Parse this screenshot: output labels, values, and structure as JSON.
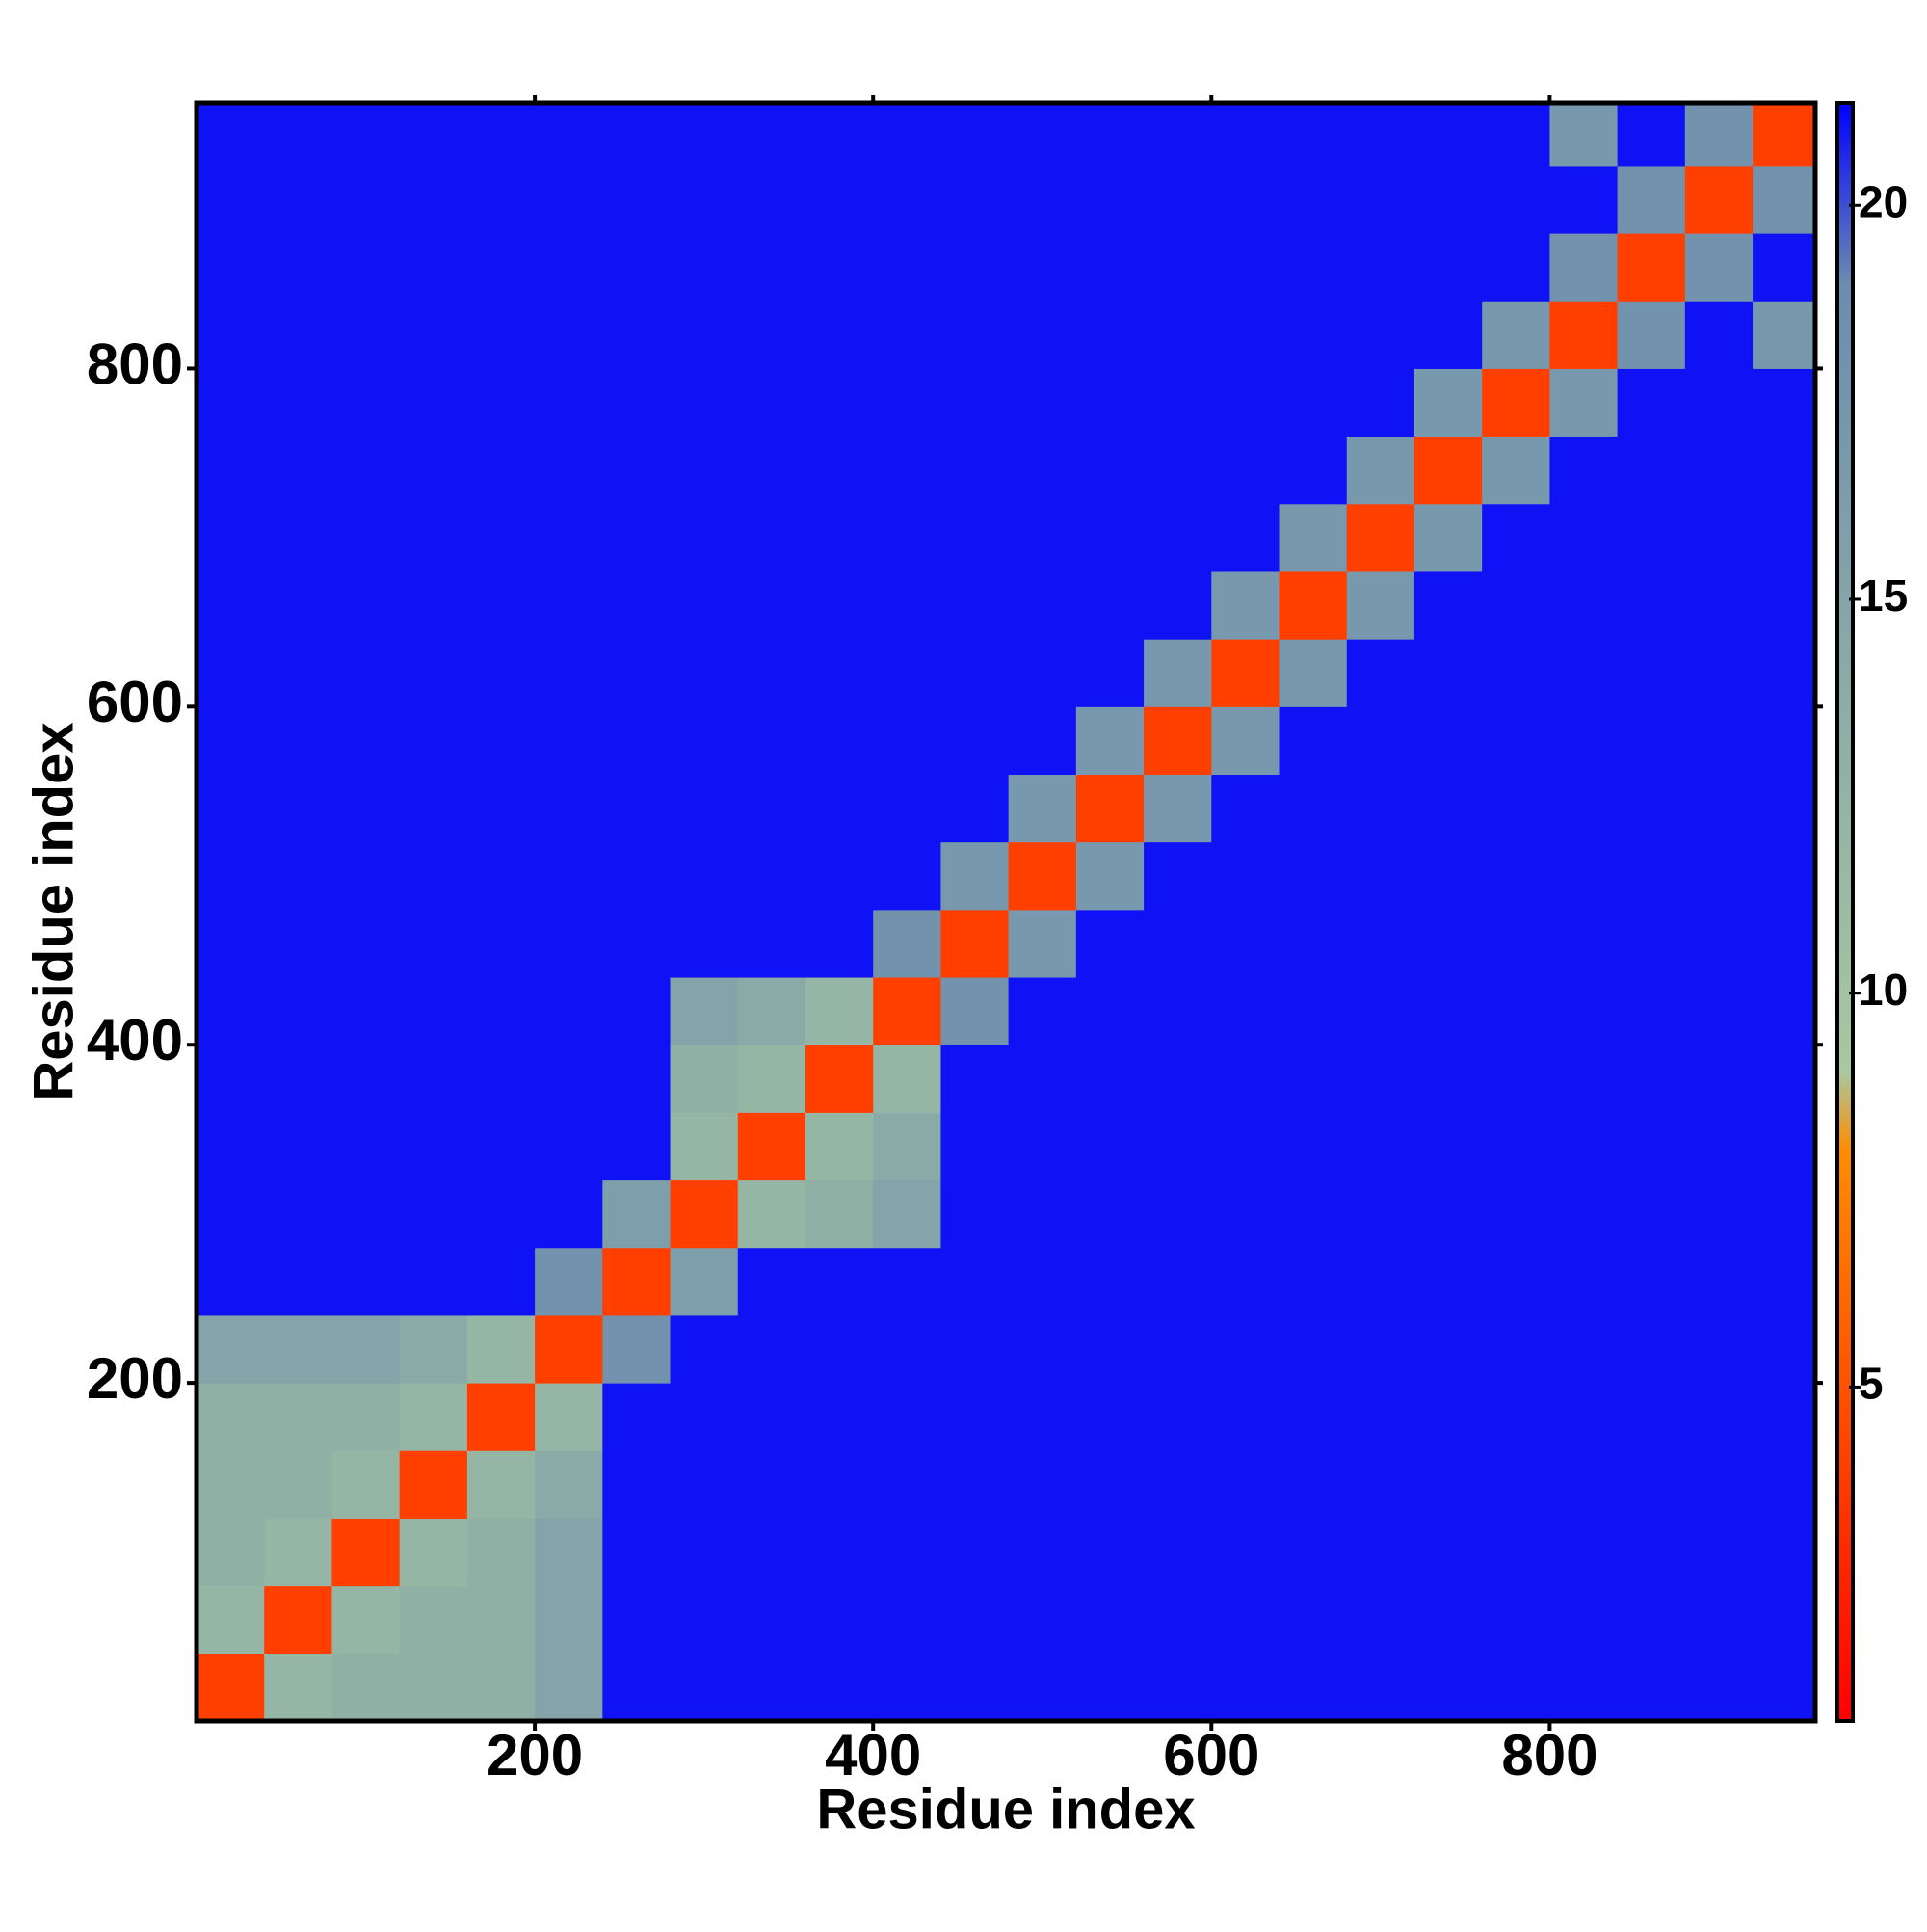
{
  "chart_data": {
    "type": "heatmap",
    "xlabel": "Residue index",
    "ylabel": "Residue index",
    "xlim": [
      0,
      957
    ],
    "ylim": [
      0,
      957
    ],
    "xticks": [
      200,
      400,
      600,
      800
    ],
    "yticks": [
      200,
      400,
      600,
      800
    ],
    "clim": [
      0.76,
      21.3
    ],
    "cticks": [
      5,
      10,
      15,
      20
    ],
    "colorscale": [
      {
        "value": 0.76,
        "color": "#ff0000"
      },
      {
        "value": 8,
        "color": "#ff8c00"
      },
      {
        "value": 9,
        "color": "#a8c8a0"
      },
      {
        "value": 19,
        "color": "#6c8cb0"
      },
      {
        "value": 21.3,
        "color": "#0000ff"
      }
    ],
    "xbins": [
      0,
      40,
      80,
      120,
      160,
      200,
      240,
      280,
      320,
      360,
      400,
      440,
      480,
      520,
      560,
      600,
      640,
      680,
      720,
      760,
      800,
      840,
      880,
      920,
      960
    ],
    "ybins": [
      0,
      40,
      80,
      120,
      160,
      200,
      240,
      280,
      320,
      360,
      400,
      440,
      480,
      520,
      560,
      600,
      640,
      680,
      720,
      760,
      800,
      840,
      880,
      920,
      960
    ],
    "values": [
      [
        4,
        12,
        13,
        13,
        13,
        15,
        21,
        21,
        21,
        21,
        21,
        21,
        21,
        21,
        21,
        21,
        21,
        21,
        21,
        21,
        21,
        21,
        21,
        21
      ],
      [
        12,
        4,
        12,
        13,
        13,
        15,
        21,
        21,
        21,
        21,
        21,
        21,
        21,
        21,
        21,
        21,
        21,
        21,
        21,
        21,
        21,
        21,
        21,
        21
      ],
      [
        13,
        12,
        4,
        12,
        13,
        15,
        21,
        21,
        21,
        21,
        21,
        21,
        21,
        21,
        21,
        21,
        21,
        21,
        21,
        21,
        21,
        21,
        21,
        21
      ],
      [
        13,
        13,
        12,
        4,
        12,
        14,
        21,
        21,
        21,
        21,
        21,
        21,
        21,
        21,
        21,
        21,
        21,
        21,
        21,
        21,
        21,
        21,
        21,
        21
      ],
      [
        13,
        13,
        13,
        12,
        4,
        12,
        21,
        21,
        21,
        21,
        21,
        21,
        21,
        21,
        21,
        21,
        21,
        21,
        21,
        21,
        21,
        21,
        21,
        21
      ],
      [
        15,
        15,
        15,
        14,
        12,
        4,
        18,
        21,
        21,
        21,
        21,
        21,
        21,
        21,
        21,
        21,
        21,
        21,
        21,
        21,
        21,
        21,
        21,
        21
      ],
      [
        21,
        21,
        21,
        21,
        21,
        18,
        4,
        16,
        21,
        21,
        21,
        21,
        21,
        21,
        21,
        21,
        21,
        21,
        21,
        21,
        21,
        21,
        21,
        21
      ],
      [
        21,
        21,
        21,
        21,
        21,
        21,
        16,
        4,
        12,
        13,
        15,
        21,
        21,
        21,
        21,
        21,
        21,
        21,
        21,
        21,
        21,
        21,
        21,
        21
      ],
      [
        21,
        21,
        21,
        21,
        21,
        21,
        21,
        12,
        4,
        12,
        14,
        21,
        21,
        21,
        21,
        21,
        21,
        21,
        21,
        21,
        21,
        21,
        21,
        21
      ],
      [
        21,
        21,
        21,
        21,
        21,
        21,
        21,
        13,
        12,
        4,
        12,
        21,
        21,
        21,
        21,
        21,
        21,
        21,
        21,
        21,
        21,
        21,
        21,
        21
      ],
      [
        21,
        21,
        21,
        21,
        21,
        21,
        21,
        15,
        14,
        12,
        4,
        18,
        21,
        21,
        21,
        21,
        21,
        21,
        21,
        21,
        21,
        21,
        21,
        21
      ],
      [
        21,
        21,
        21,
        21,
        21,
        21,
        21,
        21,
        21,
        21,
        18,
        4,
        17,
        21,
        21,
        21,
        21,
        21,
        21,
        21,
        21,
        21,
        21,
        21
      ],
      [
        21,
        21,
        21,
        21,
        21,
        21,
        21,
        21,
        21,
        21,
        21,
        17,
        4,
        17,
        21,
        21,
        21,
        21,
        21,
        21,
        21,
        21,
        21,
        21
      ],
      [
        21,
        21,
        21,
        21,
        21,
        21,
        21,
        21,
        21,
        21,
        21,
        21,
        17,
        4,
        17,
        21,
        21,
        21,
        21,
        21,
        21,
        21,
        21,
        21
      ],
      [
        21,
        21,
        21,
        21,
        21,
        21,
        21,
        21,
        21,
        21,
        21,
        21,
        21,
        17,
        4,
        17,
        21,
        21,
        21,
        21,
        21,
        21,
        21,
        21
      ],
      [
        21,
        21,
        21,
        21,
        21,
        21,
        21,
        21,
        21,
        21,
        21,
        21,
        21,
        21,
        17,
        4,
        17,
        21,
        21,
        21,
        21,
        21,
        21,
        21
      ],
      [
        21,
        21,
        21,
        21,
        21,
        21,
        21,
        21,
        21,
        21,
        21,
        21,
        21,
        21,
        21,
        17,
        4,
        17,
        21,
        21,
        21,
        21,
        21,
        21
      ],
      [
        21,
        21,
        21,
        21,
        21,
        21,
        21,
        21,
        21,
        21,
        21,
        21,
        21,
        21,
        21,
        21,
        17,
        4,
        17,
        21,
        21,
        21,
        21,
        21
      ],
      [
        21,
        21,
        21,
        21,
        21,
        21,
        21,
        21,
        21,
        21,
        21,
        21,
        21,
        21,
        21,
        21,
        21,
        17,
        4,
        17,
        21,
        21,
        21,
        21
      ],
      [
        21,
        21,
        21,
        21,
        21,
        21,
        21,
        21,
        21,
        21,
        21,
        21,
        21,
        21,
        21,
        21,
        21,
        21,
        17,
        4,
        17,
        21,
        21,
        21
      ],
      [
        21,
        21,
        21,
        21,
        21,
        21,
        21,
        21,
        21,
        21,
        21,
        21,
        21,
        21,
        21,
        21,
        21,
        21,
        21,
        17,
        4,
        18,
        21,
        17
      ],
      [
        21,
        21,
        21,
        21,
        21,
        21,
        21,
        21,
        21,
        21,
        21,
        21,
        21,
        21,
        21,
        21,
        21,
        21,
        21,
        21,
        18,
        4,
        18,
        21
      ],
      [
        21,
        21,
        21,
        21,
        21,
        21,
        21,
        21,
        21,
        21,
        21,
        21,
        21,
        21,
        21,
        21,
        21,
        21,
        21,
        21,
        21,
        18,
        4,
        18
      ],
      [
        21,
        21,
        21,
        21,
        21,
        21,
        21,
        21,
        21,
        21,
        21,
        21,
        21,
        21,
        21,
        21,
        21,
        21,
        21,
        21,
        17,
        21,
        18,
        4
      ]
    ]
  }
}
